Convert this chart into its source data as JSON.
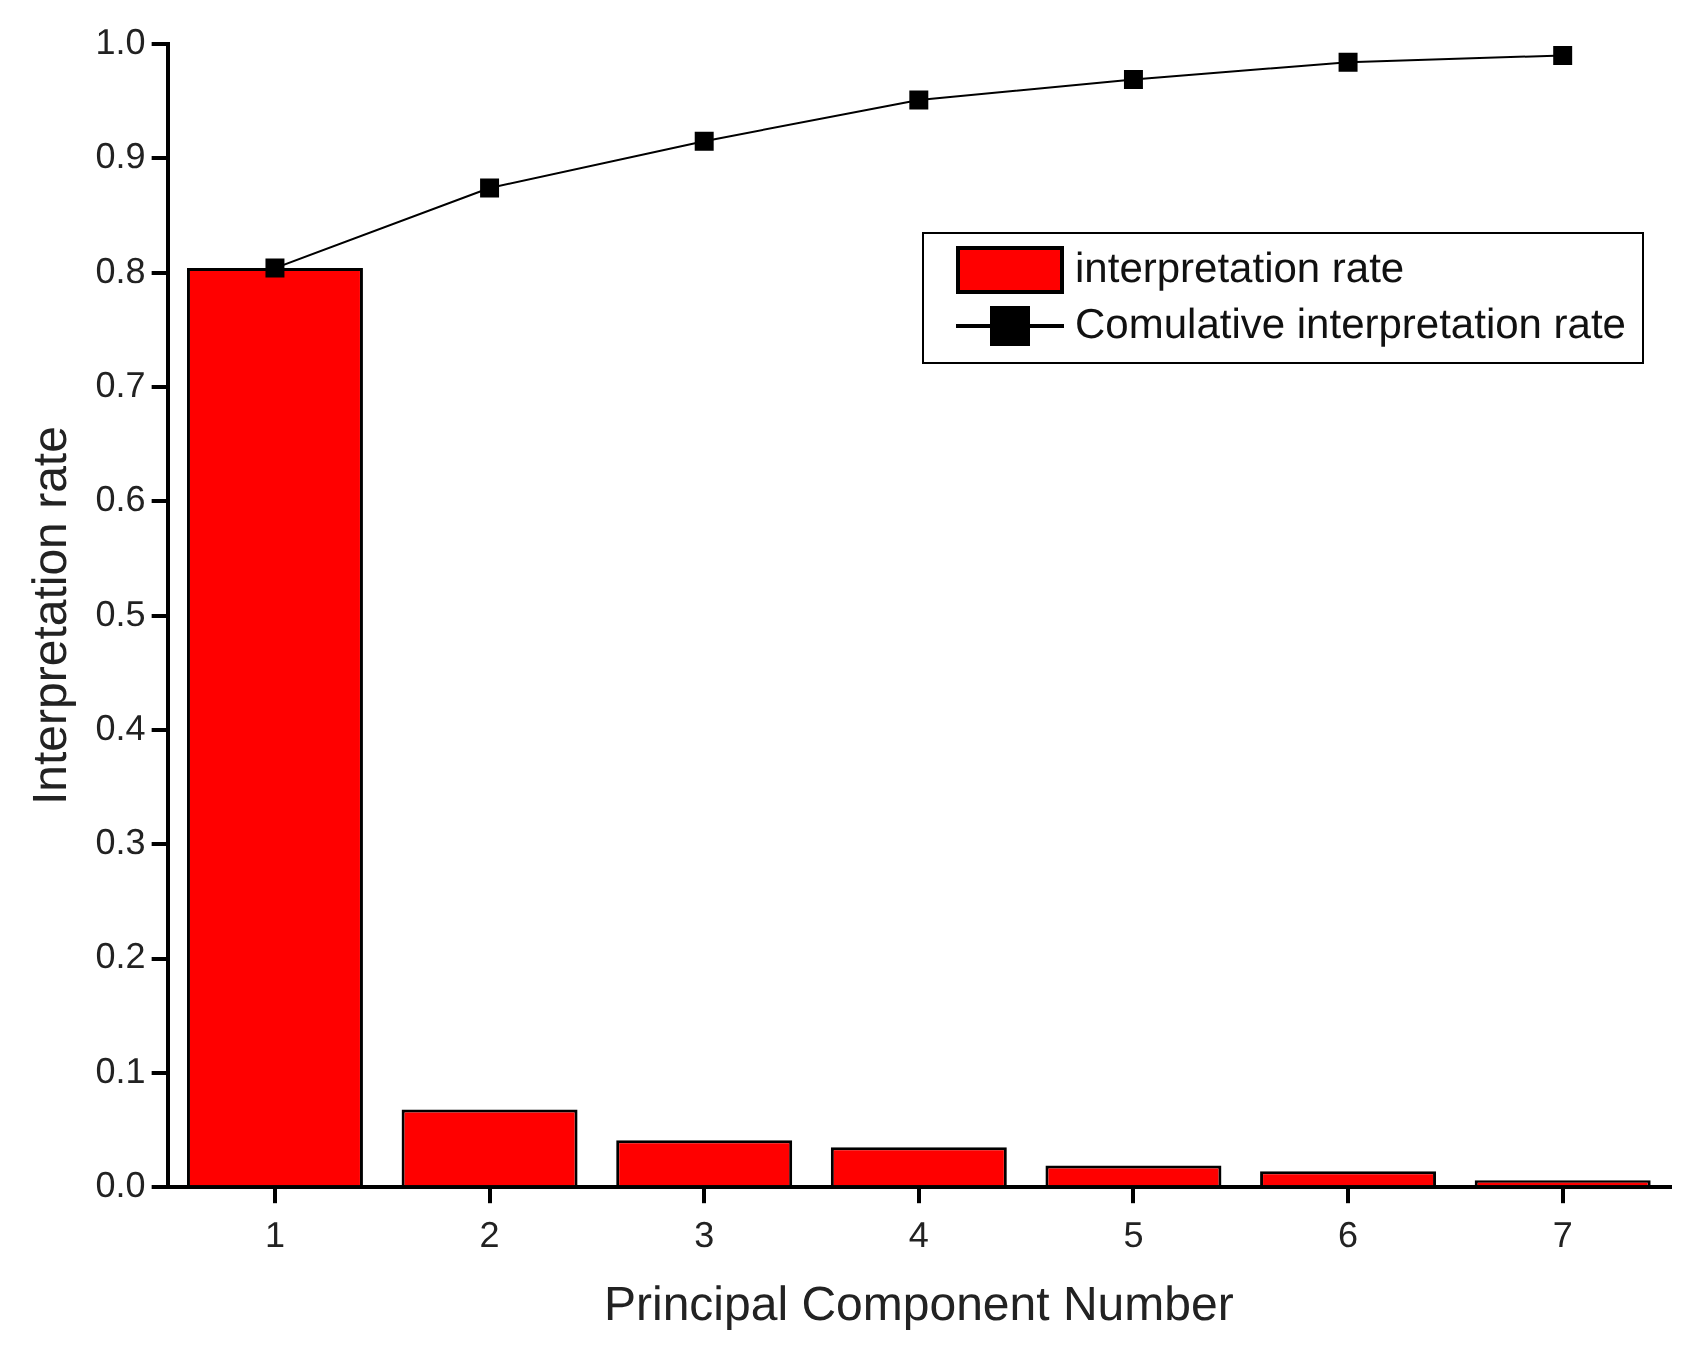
{
  "chart_data": {
    "type": "bar",
    "xlabel": "Principal Component Number",
    "ylabel": "Interpretation rate",
    "categories": [
      "1",
      "2",
      "3",
      "4",
      "5",
      "6",
      "7"
    ],
    "series": [
      {
        "name": "interpretation rate",
        "color": "#ff0000",
        "values": [
          0.804,
          0.068,
          0.041,
          0.035,
          0.019,
          0.014,
          0.006
        ]
      },
      {
        "name": "Comulative interpretation rate",
        "type": "line",
        "color": "#000000",
        "values": [
          0.804,
          0.874,
          0.915,
          0.951,
          0.969,
          0.984,
          0.99
        ]
      }
    ],
    "ylim": [
      0,
      1
    ],
    "yticks": [
      {
        "value": 0,
        "label": "0.0"
      },
      0.1,
      0.2,
      0.3,
      0.4,
      0.5,
      0.6,
      0.7,
      0.8,
      0.9,
      {
        "value": 1,
        "label": "1.0"
      }
    ],
    "grid": false,
    "legend": "top right",
    "marker": "square",
    "line_style": "solid"
  }
}
